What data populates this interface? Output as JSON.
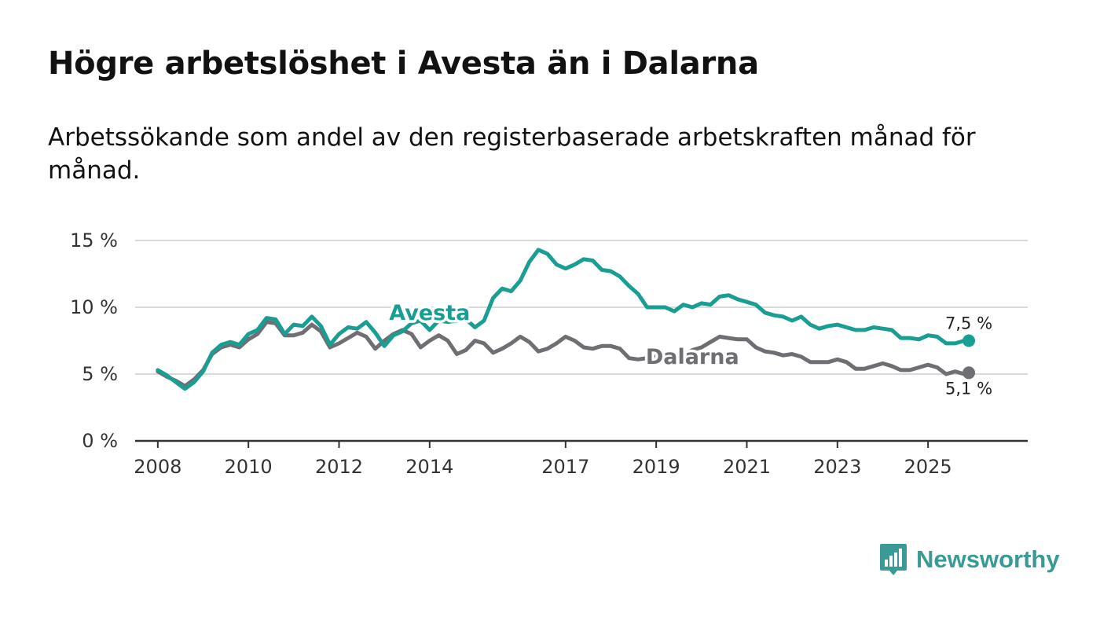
{
  "title": "Högre arbetslöshet i Avesta än i Dalarna",
  "subtitle": "Arbetssökande som andel av den registerbaserade arbetskraften månad för månad.",
  "logo_text": "Newsworthy",
  "colors": {
    "avesta": "#1a9e93",
    "dalarna": "#6e6e73",
    "grid": "#d9d9d9",
    "axis": "#333333",
    "logo": "#3a9a96"
  },
  "chart_data": {
    "type": "line",
    "title": "Högre arbetslöshet i Avesta än i Dalarna",
    "xlabel": "",
    "ylabel": "",
    "xlim": [
      2007.5,
      2027.2
    ],
    "ylim": [
      0,
      15
    ],
    "x_ticks": [
      2008,
      2010,
      2012,
      2014,
      2017,
      2019,
      2021,
      2023,
      2025
    ],
    "y_ticks": [
      {
        "value": 0,
        "label": "0 %"
      },
      {
        "value": 5,
        "label": "5 %"
      },
      {
        "value": 10,
        "label": "10 %"
      },
      {
        "value": 15,
        "label": "15 %"
      }
    ],
    "series": [
      {
        "name": "Avesta",
        "label": "Avesta",
        "end_label": "7,5 %",
        "end_value": 7.5,
        "points": [
          [
            2008.0,
            5.3
          ],
          [
            2008.2,
            4.9
          ],
          [
            2008.4,
            4.4
          ],
          [
            2008.6,
            3.9
          ],
          [
            2008.8,
            4.4
          ],
          [
            2009.0,
            5.2
          ],
          [
            2009.2,
            6.6
          ],
          [
            2009.4,
            7.2
          ],
          [
            2009.6,
            7.4
          ],
          [
            2009.8,
            7.2
          ],
          [
            2010.0,
            8.0
          ],
          [
            2010.2,
            8.3
          ],
          [
            2010.4,
            9.2
          ],
          [
            2010.6,
            9.1
          ],
          [
            2010.8,
            8.0
          ],
          [
            2011.0,
            8.7
          ],
          [
            2011.2,
            8.6
          ],
          [
            2011.4,
            9.3
          ],
          [
            2011.6,
            8.6
          ],
          [
            2011.8,
            7.2
          ],
          [
            2012.0,
            8.0
          ],
          [
            2012.2,
            8.5
          ],
          [
            2012.4,
            8.4
          ],
          [
            2012.6,
            8.9
          ],
          [
            2012.8,
            8.1
          ],
          [
            2013.0,
            7.1
          ],
          [
            2013.2,
            7.9
          ],
          [
            2013.4,
            8.2
          ],
          [
            2013.6,
            8.8
          ],
          [
            2013.8,
            9.0
          ],
          [
            2014.0,
            8.3
          ],
          [
            2014.2,
            9.0
          ],
          [
            2014.4,
            8.9
          ],
          [
            2014.6,
            9.0
          ],
          [
            2014.8,
            9.1
          ],
          [
            2015.0,
            8.5
          ],
          [
            2015.2,
            9.0
          ],
          [
            2015.4,
            10.7
          ],
          [
            2015.6,
            11.4
          ],
          [
            2015.8,
            11.2
          ],
          [
            2016.0,
            12.0
          ],
          [
            2016.2,
            13.4
          ],
          [
            2016.4,
            14.3
          ],
          [
            2016.6,
            14.0
          ],
          [
            2016.8,
            13.2
          ],
          [
            2017.0,
            12.9
          ],
          [
            2017.2,
            13.2
          ],
          [
            2017.4,
            13.6
          ],
          [
            2017.6,
            13.5
          ],
          [
            2017.8,
            12.8
          ],
          [
            2018.0,
            12.7
          ],
          [
            2018.2,
            12.3
          ],
          [
            2018.4,
            11.6
          ],
          [
            2018.6,
            11.0
          ],
          [
            2018.8,
            10.0
          ],
          [
            2019.0,
            10.0
          ],
          [
            2019.2,
            10.0
          ],
          [
            2019.4,
            9.7
          ],
          [
            2019.6,
            10.2
          ],
          [
            2019.8,
            10.0
          ],
          [
            2020.0,
            10.3
          ],
          [
            2020.2,
            10.2
          ],
          [
            2020.4,
            10.8
          ],
          [
            2020.6,
            10.9
          ],
          [
            2020.8,
            10.6
          ],
          [
            2021.0,
            10.4
          ],
          [
            2021.2,
            10.2
          ],
          [
            2021.4,
            9.6
          ],
          [
            2021.6,
            9.4
          ],
          [
            2021.8,
            9.3
          ],
          [
            2022.0,
            9.0
          ],
          [
            2022.2,
            9.3
          ],
          [
            2022.4,
            8.7
          ],
          [
            2022.6,
            8.4
          ],
          [
            2022.8,
            8.6
          ],
          [
            2023.0,
            8.7
          ],
          [
            2023.2,
            8.5
          ],
          [
            2023.4,
            8.3
          ],
          [
            2023.6,
            8.3
          ],
          [
            2023.8,
            8.5
          ],
          [
            2024.0,
            8.4
          ],
          [
            2024.2,
            8.3
          ],
          [
            2024.4,
            7.7
          ],
          [
            2024.6,
            7.7
          ],
          [
            2024.8,
            7.6
          ],
          [
            2025.0,
            7.9
          ],
          [
            2025.2,
            7.8
          ],
          [
            2025.4,
            7.3
          ],
          [
            2025.6,
            7.3
          ],
          [
            2025.8,
            7.5
          ],
          [
            2025.9,
            7.5
          ]
        ]
      },
      {
        "name": "Dalarna",
        "label": "Dalarna",
        "end_label": "5,1 %",
        "end_value": 5.1,
        "points": [
          [
            2008.0,
            5.2
          ],
          [
            2008.2,
            4.8
          ],
          [
            2008.4,
            4.5
          ],
          [
            2008.6,
            4.1
          ],
          [
            2008.8,
            4.6
          ],
          [
            2009.0,
            5.3
          ],
          [
            2009.2,
            6.5
          ],
          [
            2009.4,
            7.0
          ],
          [
            2009.6,
            7.2
          ],
          [
            2009.8,
            7.0
          ],
          [
            2010.0,
            7.6
          ],
          [
            2010.2,
            8.0
          ],
          [
            2010.4,
            8.9
          ],
          [
            2010.6,
            8.8
          ],
          [
            2010.8,
            7.9
          ],
          [
            2011.0,
            7.9
          ],
          [
            2011.2,
            8.1
          ],
          [
            2011.4,
            8.7
          ],
          [
            2011.6,
            8.2
          ],
          [
            2011.8,
            7.0
          ],
          [
            2012.0,
            7.3
          ],
          [
            2012.2,
            7.7
          ],
          [
            2012.4,
            8.1
          ],
          [
            2012.6,
            7.8
          ],
          [
            2012.8,
            6.9
          ],
          [
            2013.0,
            7.5
          ],
          [
            2013.2,
            8.0
          ],
          [
            2013.4,
            8.3
          ],
          [
            2013.6,
            8.0
          ],
          [
            2013.8,
            7.0
          ],
          [
            2014.0,
            7.5
          ],
          [
            2014.2,
            7.9
          ],
          [
            2014.4,
            7.5
          ],
          [
            2014.6,
            6.5
          ],
          [
            2014.8,
            6.8
          ],
          [
            2015.0,
            7.5
          ],
          [
            2015.2,
            7.3
          ],
          [
            2015.4,
            6.6
          ],
          [
            2015.6,
            6.9
          ],
          [
            2015.8,
            7.3
          ],
          [
            2016.0,
            7.8
          ],
          [
            2016.2,
            7.4
          ],
          [
            2016.4,
            6.7
          ],
          [
            2016.6,
            6.9
          ],
          [
            2016.8,
            7.3
          ],
          [
            2017.0,
            7.8
          ],
          [
            2017.2,
            7.5
          ],
          [
            2017.4,
            7.0
          ],
          [
            2017.6,
            6.9
          ],
          [
            2017.8,
            7.1
          ],
          [
            2018.0,
            7.1
          ],
          [
            2018.2,
            6.9
          ],
          [
            2018.4,
            6.2
          ],
          [
            2018.6,
            6.1
          ],
          [
            2018.8,
            6.2
          ],
          [
            2019.0,
            6.4
          ],
          [
            2019.2,
            6.0
          ],
          [
            2019.4,
            5.8
          ],
          [
            2019.6,
            6.3
          ],
          [
            2019.8,
            6.8
          ],
          [
            2020.0,
            7.0
          ],
          [
            2020.2,
            7.4
          ],
          [
            2020.4,
            7.8
          ],
          [
            2020.6,
            7.7
          ],
          [
            2020.8,
            7.6
          ],
          [
            2021.0,
            7.6
          ],
          [
            2021.2,
            7.0
          ],
          [
            2021.4,
            6.7
          ],
          [
            2021.6,
            6.6
          ],
          [
            2021.8,
            6.4
          ],
          [
            2022.0,
            6.5
          ],
          [
            2022.2,
            6.3
          ],
          [
            2022.4,
            5.9
          ],
          [
            2022.6,
            5.9
          ],
          [
            2022.8,
            5.9
          ],
          [
            2023.0,
            6.1
          ],
          [
            2023.2,
            5.9
          ],
          [
            2023.4,
            5.4
          ],
          [
            2023.6,
            5.4
          ],
          [
            2023.8,
            5.6
          ],
          [
            2024.0,
            5.8
          ],
          [
            2024.2,
            5.6
          ],
          [
            2024.4,
            5.3
          ],
          [
            2024.6,
            5.3
          ],
          [
            2024.8,
            5.5
          ],
          [
            2025.0,
            5.7
          ],
          [
            2025.2,
            5.5
          ],
          [
            2025.4,
            5.0
          ],
          [
            2025.6,
            5.2
          ],
          [
            2025.8,
            5.0
          ],
          [
            2025.9,
            5.1
          ]
        ]
      }
    ]
  }
}
